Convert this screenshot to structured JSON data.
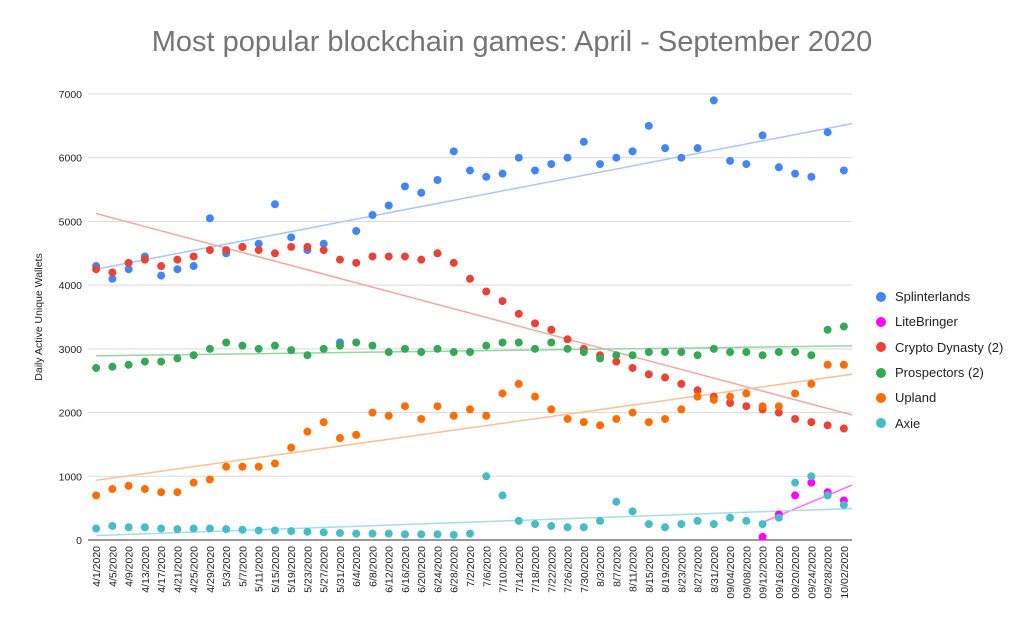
{
  "chart_data": {
    "type": "scatter",
    "title": "Most popular blockchain games: April - September 2020",
    "xlabel": "",
    "ylabel": "Daily Active Unique Wallets",
    "ylim": [
      0,
      7000
    ],
    "yticks": [
      0,
      1000,
      2000,
      3000,
      4000,
      5000,
      6000,
      7000
    ],
    "grid": true,
    "trendlines": true,
    "legend_position": "right",
    "x_tick_labels": [
      "4/1/2020",
      "4/5/2020",
      "4/9/2020",
      "4/13/2020",
      "4/17/2020",
      "4/21/2020",
      "4/25/2020",
      "4/29/2020",
      "5/3/2020",
      "5/7/2020",
      "5/11/2020",
      "5/15/2020",
      "5/19/2020",
      "5/23/2020",
      "5/27/2020",
      "5/31/2020",
      "6/4/2020",
      "6/8/2020",
      "6/12/2020",
      "6/16/2020",
      "6/20/2020",
      "6/24/2020",
      "6/28/2020",
      "7/2/2020",
      "7/6/2020",
      "7/10/2020",
      "7/14/2020",
      "7/18/2020",
      "7/22/2020",
      "7/26/2020",
      "7/30/2020",
      "8/3/2020",
      "8/7/2020",
      "8/11/2020",
      "8/15/2020",
      "8/19/2020",
      "8/23/2020",
      "8/27/2020",
      "8/31/2020",
      "09/04/2020",
      "09/08/2020",
      "09/12/2020",
      "09/16/2020",
      "09/20/2020",
      "09/24/2020",
      "09/28/2020",
      "10/02/2020"
    ],
    "series": [
      {
        "name": "Splinterlands",
        "color": "#4285f4",
        "trend_color": "#aac6f9",
        "points": [
          [
            "4/1/2020",
            4300
          ],
          [
            "4/5/2020",
            4100
          ],
          [
            "4/9/2020",
            4250
          ],
          [
            "4/13/2020",
            4450
          ],
          [
            "4/17/2020",
            4150
          ],
          [
            "4/21/2020",
            4250
          ],
          [
            "4/25/2020",
            4300
          ],
          [
            "4/29/2020",
            5050
          ],
          [
            "5/3/2020",
            4500
          ],
          [
            "5/7/2020",
            4600
          ],
          [
            "5/11/2020",
            4650
          ],
          [
            "5/15/2020",
            5270
          ],
          [
            "5/19/2020",
            4750
          ],
          [
            "5/23/2020",
            4550
          ],
          [
            "5/27/2020",
            4650
          ],
          [
            "5/31/2020",
            3100
          ],
          [
            "6/4/2020",
            4850
          ],
          [
            "6/8/2020",
            5100
          ],
          [
            "6/12/2020",
            5250
          ],
          [
            "6/16/2020",
            5550
          ],
          [
            "6/20/2020",
            5450
          ],
          [
            "6/24/2020",
            5650
          ],
          [
            "6/28/2020",
            6100
          ],
          [
            "7/2/2020",
            5800
          ],
          [
            "7/6/2020",
            5700
          ],
          [
            "7/10/2020",
            5750
          ],
          [
            "7/14/2020",
            6000
          ],
          [
            "7/18/2020",
            5800
          ],
          [
            "7/22/2020",
            5900
          ],
          [
            "7/26/2020",
            6000
          ],
          [
            "7/30/2020",
            6250
          ],
          [
            "8/3/2020",
            5900
          ],
          [
            "8/7/2020",
            6000
          ],
          [
            "8/11/2020",
            6100
          ],
          [
            "8/15/2020",
            6500
          ],
          [
            "8/19/2020",
            6150
          ],
          [
            "8/23/2020",
            6000
          ],
          [
            "8/27/2020",
            6150
          ],
          [
            "8/31/2020",
            6900
          ],
          [
            "09/04/2020",
            5950
          ],
          [
            "09/08/2020",
            5900
          ],
          [
            "09/12/2020",
            6350
          ],
          [
            "09/16/2020",
            5850
          ],
          [
            "09/20/2020",
            5750
          ],
          [
            "09/24/2020",
            5700
          ],
          [
            "09/28/2020",
            6400
          ],
          [
            "10/02/2020",
            5800
          ]
        ]
      },
      {
        "name": "LiteBringer",
        "color": "#ff00ff",
        "trend_color": "#ff70ff",
        "points": [
          [
            "09/12/2020",
            50
          ],
          [
            "09/16/2020",
            400
          ],
          [
            "09/20/2020",
            700
          ],
          [
            "09/24/2020",
            900
          ],
          [
            "09/28/2020",
            750
          ],
          [
            "10/02/2020",
            620
          ]
        ]
      },
      {
        "name": "Crypto Dynasty (2)",
        "color": "#ea4335",
        "trend_color": "#f4a8a1",
        "points": [
          [
            "4/1/2020",
            4250
          ],
          [
            "4/5/2020",
            4200
          ],
          [
            "4/9/2020",
            4350
          ],
          [
            "4/13/2020",
            4400
          ],
          [
            "4/17/2020",
            4300
          ],
          [
            "4/21/2020",
            4400
          ],
          [
            "4/25/2020",
            4450
          ],
          [
            "4/29/2020",
            4550
          ],
          [
            "5/3/2020",
            4550
          ],
          [
            "5/7/2020",
            4600
          ],
          [
            "5/11/2020",
            4550
          ],
          [
            "5/15/2020",
            4500
          ],
          [
            "5/19/2020",
            4600
          ],
          [
            "5/23/2020",
            4600
          ],
          [
            "5/27/2020",
            4550
          ],
          [
            "5/31/2020",
            4400
          ],
          [
            "6/4/2020",
            4350
          ],
          [
            "6/8/2020",
            4450
          ],
          [
            "6/12/2020",
            4450
          ],
          [
            "6/16/2020",
            4450
          ],
          [
            "6/20/2020",
            4400
          ],
          [
            "6/24/2020",
            4500
          ],
          [
            "6/28/2020",
            4350
          ],
          [
            "7/2/2020",
            4100
          ],
          [
            "7/6/2020",
            3900
          ],
          [
            "7/10/2020",
            3750
          ],
          [
            "7/14/2020",
            3550
          ],
          [
            "7/18/2020",
            3400
          ],
          [
            "7/22/2020",
            3300
          ],
          [
            "7/26/2020",
            3150
          ],
          [
            "7/30/2020",
            3000
          ],
          [
            "8/3/2020",
            2900
          ],
          [
            "8/7/2020",
            2800
          ],
          [
            "8/11/2020",
            2700
          ],
          [
            "8/15/2020",
            2600
          ],
          [
            "8/19/2020",
            2550
          ],
          [
            "8/23/2020",
            2450
          ],
          [
            "8/27/2020",
            2350
          ],
          [
            "8/31/2020",
            2250
          ],
          [
            "09/04/2020",
            2150
          ],
          [
            "09/08/2020",
            2100
          ],
          [
            "09/12/2020",
            2050
          ],
          [
            "09/16/2020",
            2000
          ],
          [
            "09/20/2020",
            1900
          ],
          [
            "09/24/2020",
            1850
          ],
          [
            "09/28/2020",
            1800
          ],
          [
            "10/02/2020",
            1750
          ]
        ]
      },
      {
        "name": "Prospectors (2)",
        "color": "#34a853",
        "trend_color": "#99d4a5",
        "points": [
          [
            "4/1/2020",
            2700
          ],
          [
            "4/5/2020",
            2720
          ],
          [
            "4/9/2020",
            2750
          ],
          [
            "4/13/2020",
            2800
          ],
          [
            "4/17/2020",
            2800
          ],
          [
            "4/21/2020",
            2850
          ],
          [
            "4/25/2020",
            2900
          ],
          [
            "4/29/2020",
            3000
          ],
          [
            "5/3/2020",
            3100
          ],
          [
            "5/7/2020",
            3050
          ],
          [
            "5/11/2020",
            3000
          ],
          [
            "5/15/2020",
            3050
          ],
          [
            "5/19/2020",
            2980
          ],
          [
            "5/23/2020",
            2900
          ],
          [
            "5/27/2020",
            3000
          ],
          [
            "5/31/2020",
            3050
          ],
          [
            "6/4/2020",
            3100
          ],
          [
            "6/8/2020",
            3050
          ],
          [
            "6/12/2020",
            2950
          ],
          [
            "6/16/2020",
            3000
          ],
          [
            "6/20/2020",
            2950
          ],
          [
            "6/24/2020",
            3000
          ],
          [
            "6/28/2020",
            2950
          ],
          [
            "7/2/2020",
            2950
          ],
          [
            "7/6/2020",
            3050
          ],
          [
            "7/10/2020",
            3100
          ],
          [
            "7/14/2020",
            3100
          ],
          [
            "7/18/2020",
            3000
          ],
          [
            "7/22/2020",
            3100
          ],
          [
            "7/26/2020",
            3000
          ],
          [
            "7/30/2020",
            2950
          ],
          [
            "8/3/2020",
            2850
          ],
          [
            "8/7/2020",
            2900
          ],
          [
            "8/11/2020",
            2900
          ],
          [
            "8/15/2020",
            2950
          ],
          [
            "8/19/2020",
            2950
          ],
          [
            "8/23/2020",
            2950
          ],
          [
            "8/27/2020",
            2900
          ],
          [
            "8/31/2020",
            3000
          ],
          [
            "09/04/2020",
            2950
          ],
          [
            "09/08/2020",
            2950
          ],
          [
            "09/12/2020",
            2900
          ],
          [
            "09/16/2020",
            2950
          ],
          [
            "09/20/2020",
            2950
          ],
          [
            "09/24/2020",
            2900
          ],
          [
            "09/28/2020",
            3300
          ],
          [
            "10/02/2020",
            3350
          ]
        ]
      },
      {
        "name": "Upland",
        "color": "#ff6d01",
        "trend_color": "#fdc093",
        "points": [
          [
            "4/1/2020",
            700
          ],
          [
            "4/5/2020",
            800
          ],
          [
            "4/9/2020",
            850
          ],
          [
            "4/13/2020",
            800
          ],
          [
            "4/17/2020",
            750
          ],
          [
            "4/21/2020",
            750
          ],
          [
            "4/25/2020",
            900
          ],
          [
            "4/29/2020",
            950
          ],
          [
            "5/3/2020",
            1150
          ],
          [
            "5/7/2020",
            1150
          ],
          [
            "5/11/2020",
            1150
          ],
          [
            "5/15/2020",
            1200
          ],
          [
            "5/19/2020",
            1450
          ],
          [
            "5/23/2020",
            1700
          ],
          [
            "5/27/2020",
            1850
          ],
          [
            "5/31/2020",
            1600
          ],
          [
            "6/4/2020",
            1650
          ],
          [
            "6/8/2020",
            2000
          ],
          [
            "6/12/2020",
            1950
          ],
          [
            "6/16/2020",
            2100
          ],
          [
            "6/20/2020",
            1900
          ],
          [
            "6/24/2020",
            2100
          ],
          [
            "6/28/2020",
            1950
          ],
          [
            "7/2/2020",
            2050
          ],
          [
            "7/6/2020",
            1950
          ],
          [
            "7/10/2020",
            2300
          ],
          [
            "7/14/2020",
            2450
          ],
          [
            "7/18/2020",
            2250
          ],
          [
            "7/22/2020",
            2050
          ],
          [
            "7/26/2020",
            1900
          ],
          [
            "7/30/2020",
            1850
          ],
          [
            "8/3/2020",
            1800
          ],
          [
            "8/7/2020",
            1900
          ],
          [
            "8/11/2020",
            2000
          ],
          [
            "8/15/2020",
            1850
          ],
          [
            "8/19/2020",
            1900
          ],
          [
            "8/23/2020",
            2050
          ],
          [
            "8/27/2020",
            2250
          ],
          [
            "8/31/2020",
            2200
          ],
          [
            "09/04/2020",
            2250
          ],
          [
            "09/08/2020",
            2300
          ],
          [
            "09/12/2020",
            2100
          ],
          [
            "09/16/2020",
            2100
          ],
          [
            "09/20/2020",
            2300
          ],
          [
            "09/24/2020",
            2450
          ],
          [
            "09/28/2020",
            2750
          ],
          [
            "10/02/2020",
            2750
          ]
        ]
      },
      {
        "name": "Axie",
        "color": "#46bdc6",
        "trend_color": "#a5dee2",
        "points": [
          [
            "4/1/2020",
            180
          ],
          [
            "4/5/2020",
            220
          ],
          [
            "4/9/2020",
            200
          ],
          [
            "4/13/2020",
            200
          ],
          [
            "4/17/2020",
            180
          ],
          [
            "4/21/2020",
            170
          ],
          [
            "4/25/2020",
            180
          ],
          [
            "4/29/2020",
            180
          ],
          [
            "5/3/2020",
            170
          ],
          [
            "5/7/2020",
            160
          ],
          [
            "5/11/2020",
            150
          ],
          [
            "5/15/2020",
            150
          ],
          [
            "5/19/2020",
            140
          ],
          [
            "5/23/2020",
            130
          ],
          [
            "5/27/2020",
            120
          ],
          [
            "5/31/2020",
            110
          ],
          [
            "6/4/2020",
            100
          ],
          [
            "6/8/2020",
            100
          ],
          [
            "6/12/2020",
            100
          ],
          [
            "6/16/2020",
            90
          ],
          [
            "6/20/2020",
            90
          ],
          [
            "6/24/2020",
            90
          ],
          [
            "6/28/2020",
            80
          ],
          [
            "7/2/2020",
            100
          ],
          [
            "7/6/2020",
            1000
          ],
          [
            "7/10/2020",
            700
          ],
          [
            "7/14/2020",
            300
          ],
          [
            "7/18/2020",
            250
          ],
          [
            "7/22/2020",
            220
          ],
          [
            "7/26/2020",
            200
          ],
          [
            "7/30/2020",
            200
          ],
          [
            "8/3/2020",
            300
          ],
          [
            "8/7/2020",
            600
          ],
          [
            "8/11/2020",
            450
          ],
          [
            "8/15/2020",
            250
          ],
          [
            "8/19/2020",
            200
          ],
          [
            "8/23/2020",
            250
          ],
          [
            "8/27/2020",
            300
          ],
          [
            "8/31/2020",
            250
          ],
          [
            "09/04/2020",
            350
          ],
          [
            "09/08/2020",
            300
          ],
          [
            "09/12/2020",
            250
          ],
          [
            "09/16/2020",
            350
          ],
          [
            "09/20/2020",
            900
          ],
          [
            "09/24/2020",
            1000
          ],
          [
            "09/28/2020",
            700
          ],
          [
            "10/02/2020",
            550
          ]
        ]
      }
    ]
  }
}
